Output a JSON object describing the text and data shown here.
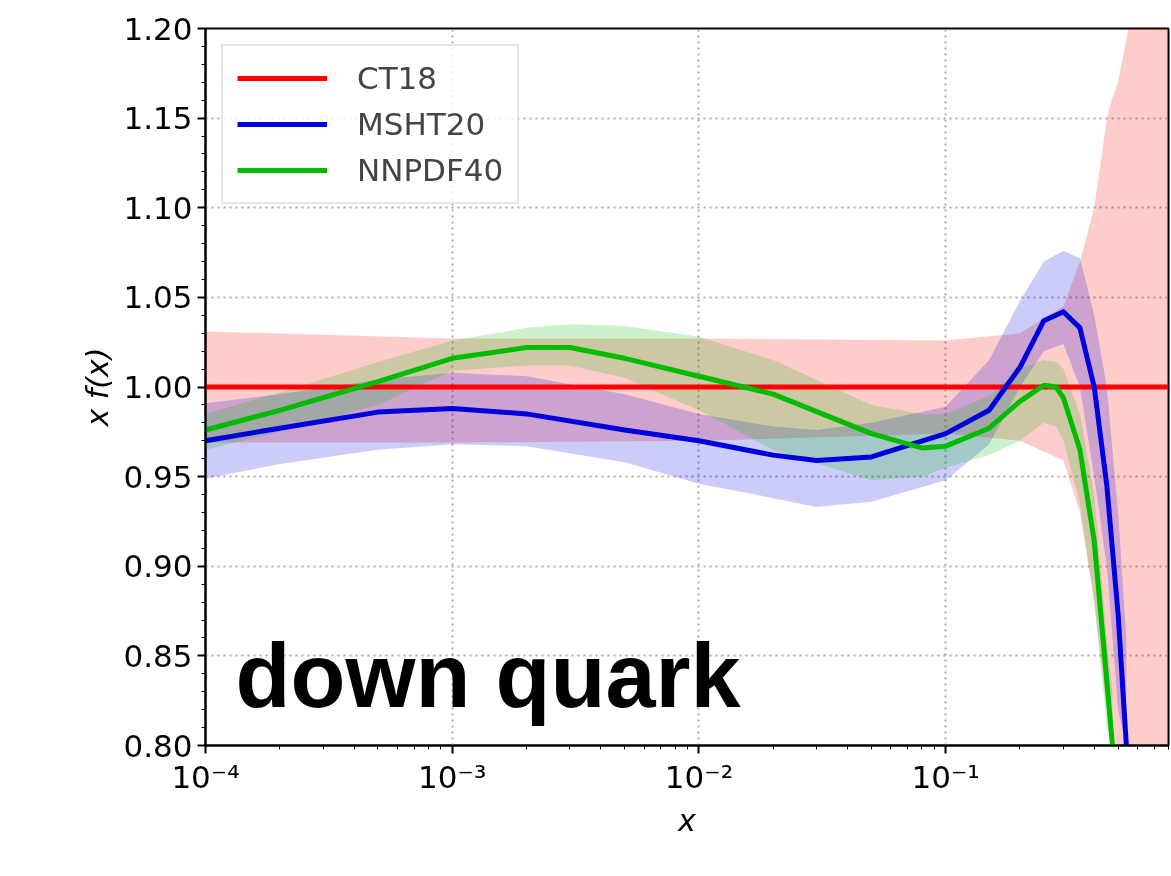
{
  "chart_data": {
    "type": "line",
    "xlabel": "x",
    "ylabel": "x f(x)",
    "log": "x",
    "grid": true,
    "legend": "top left",
    "line_style": "solid",
    "marker": "none",
    "xlim": [
      0.0001,
      0.8
    ],
    "ylim": [
      0.8,
      1.2
    ],
    "xticks": [
      {
        "value": 0.0001,
        "label": "10⁻⁴"
      },
      {
        "value": 0.001,
        "label": "10⁻³"
      },
      {
        "value": 0.01,
        "label": "10⁻²"
      },
      {
        "value": 0.1,
        "label": "10⁻¹"
      }
    ],
    "yticks": [
      {
        "value": 0.8,
        "label": "0.80"
      },
      {
        "value": 0.85,
        "label": "0.85"
      },
      {
        "value": 0.9,
        "label": "0.90"
      },
      {
        "value": 0.95,
        "label": "0.95"
      },
      {
        "value": 1.0,
        "label": "1.00"
      },
      {
        "value": 1.05,
        "label": "1.05"
      },
      {
        "value": 1.1,
        "label": "1.10"
      },
      {
        "value": 1.15,
        "label": "1.15"
      },
      {
        "value": 1.2,
        "label": "1.20"
      }
    ],
    "annotations": [
      "down quark"
    ],
    "series": [
      {
        "name": "CT18",
        "color": "#ff0000",
        "x": [
          0.0001,
          0.001,
          0.01,
          0.1,
          0.2,
          0.3,
          0.35,
          0.4,
          0.45,
          0.47,
          0.5,
          0.55,
          0.8
        ],
        "values": [
          1.0,
          1.0,
          1.0,
          1.0,
          1.0,
          1.0,
          1.0,
          1.0,
          1.0,
          1.0,
          1.0,
          1.0,
          1.0
        ],
        "lower": [
          0.969,
          0.969,
          0.97,
          0.974,
          0.97,
          0.959,
          0.93,
          0.88,
          0.82,
          0.8,
          0.8,
          0.8,
          0.8
        ],
        "upper": [
          1.031,
          1.027,
          1.027,
          1.026,
          1.03,
          1.045,
          1.07,
          1.1,
          1.15,
          1.16,
          1.17,
          1.2,
          1.2
        ]
      },
      {
        "name": "MSHT20",
        "color": "#0000dd",
        "x": [
          0.0001,
          0.0002,
          0.0005,
          0.001,
          0.002,
          0.005,
          0.01,
          0.02,
          0.03,
          0.05,
          0.1,
          0.15,
          0.2,
          0.25,
          0.3,
          0.35,
          0.4,
          0.45,
          0.5,
          0.54
        ],
        "values": [
          0.97,
          0.977,
          0.986,
          0.988,
          0.985,
          0.976,
          0.97,
          0.962,
          0.959,
          0.961,
          0.974,
          0.987,
          1.011,
          1.037,
          1.042,
          1.033,
          1.0,
          0.945,
          0.873,
          0.8
        ],
        "lower": [
          0.949,
          0.957,
          0.965,
          0.968,
          0.967,
          0.958,
          0.946,
          0.938,
          0.933,
          0.936,
          0.948,
          0.968,
          1.0,
          1.02,
          1.024,
          1.0,
          0.95,
          0.9,
          0.82,
          0.8
        ],
        "upper": [
          0.991,
          0.996,
          1.004,
          1.008,
          1.006,
          0.996,
          0.985,
          0.978,
          0.976,
          0.98,
          0.989,
          1.015,
          1.048,
          1.07,
          1.076,
          1.072,
          1.04,
          1.0,
          0.93,
          0.86
        ]
      },
      {
        "name": "NNPDF40",
        "color": "#00bb00",
        "x": [
          0.0001,
          0.0002,
          0.0005,
          0.001,
          0.002,
          0.003,
          0.005,
          0.01,
          0.02,
          0.05,
          0.08,
          0.1,
          0.15,
          0.2,
          0.25,
          0.28,
          0.3,
          0.35,
          0.4,
          0.45,
          0.474
        ],
        "values": [
          0.976,
          0.987,
          1.003,
          1.016,
          1.022,
          1.022,
          1.016,
          1.006,
          0.996,
          0.974,
          0.966,
          0.967,
          0.977,
          0.992,
          1.001,
          1.0,
          0.994,
          0.965,
          0.914,
          0.836,
          0.8
        ],
        "lower": [
          0.965,
          0.975,
          0.99,
          1.009,
          1.012,
          1.012,
          1.005,
          0.987,
          0.965,
          0.948,
          0.95,
          0.955,
          0.962,
          0.97,
          0.98,
          0.978,
          0.97,
          0.935,
          0.88,
          0.81,
          0.8
        ],
        "upper": [
          0.985,
          0.997,
          1.014,
          1.026,
          1.033,
          1.035,
          1.034,
          1.028,
          1.015,
          0.99,
          0.985,
          0.985,
          0.995,
          1.01,
          1.015,
          1.014,
          1.01,
          0.985,
          0.94,
          0.86,
          0.83
        ]
      }
    ]
  }
}
